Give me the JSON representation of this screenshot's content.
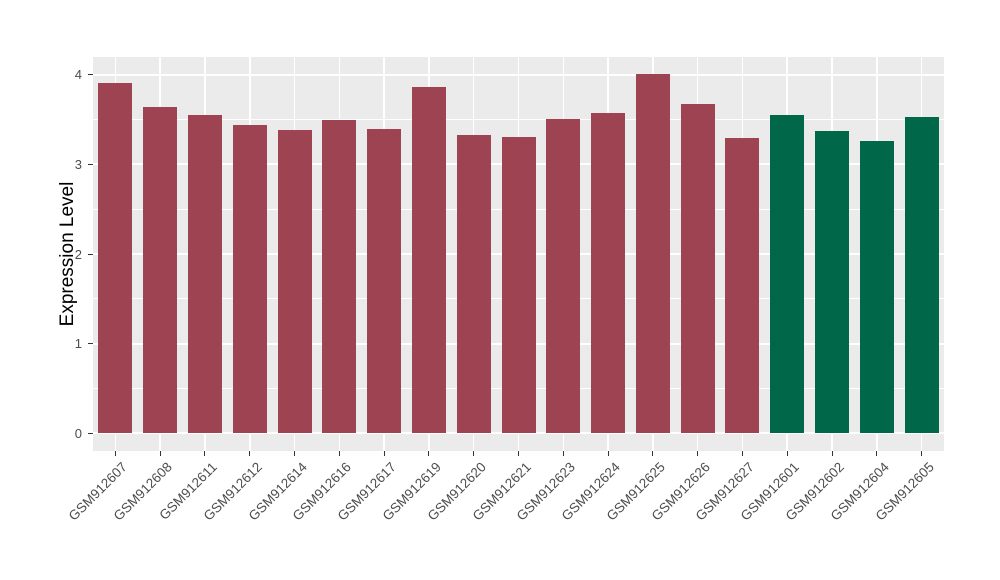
{
  "chart_data": {
    "type": "bar",
    "title": "",
    "xlabel": "",
    "ylabel": "Expression Level",
    "categories": [
      "GSM912607",
      "GSM912608",
      "GSM912611",
      "GSM912612",
      "GSM912614",
      "GSM912616",
      "GSM912617",
      "GSM912619",
      "GSM912620",
      "GSM912621",
      "GSM912623",
      "GSM912624",
      "GSM912625",
      "GSM912626",
      "GSM912627",
      "GSM912601",
      "GSM912602",
      "GSM912604",
      "GSM912605"
    ],
    "values": [
      3.91,
      3.64,
      3.55,
      3.44,
      3.39,
      3.5,
      3.4,
      3.86,
      3.33,
      3.31,
      3.51,
      3.58,
      4.01,
      3.67,
      3.29,
      3.55,
      3.37,
      3.26,
      3.53
    ],
    "bar_group": [
      "red",
      "red",
      "red",
      "red",
      "red",
      "red",
      "red",
      "red",
      "red",
      "red",
      "red",
      "red",
      "red",
      "red",
      "red",
      "green",
      "green",
      "green",
      "green"
    ],
    "group_colors": {
      "red": "#9d4351",
      "green": "#006749"
    },
    "yticks": [
      0,
      1,
      2,
      3,
      4
    ],
    "ytick_minor": [
      0.5,
      1.5,
      2.5,
      3.5
    ],
    "ylim": [
      -0.2,
      4.2
    ],
    "grid": "on",
    "legend": "none",
    "panel_background": "#ebebeb",
    "gridline_color": "#ffffff"
  }
}
